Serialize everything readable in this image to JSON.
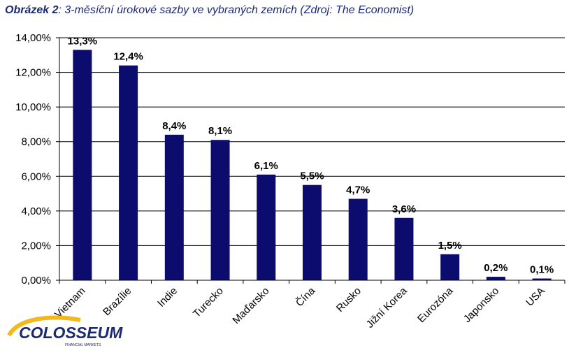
{
  "caption": {
    "label": "Obrázek 2",
    "text": ": 3-měsíční úrokové sazby ve vybraných zemích (Zdroj: The Economist)"
  },
  "logo": {
    "name": "COLOSSEUM",
    "tagline": "FINANCIAL MARKETS",
    "color": "#1c2a73",
    "accent": "#f2b81c"
  },
  "chart_data": {
    "type": "bar",
    "title": "",
    "xlabel": "",
    "ylabel": "",
    "categories": [
      "Vietnam",
      "Brazílie",
      "Indie",
      "Turecko",
      "Maďarsko",
      "Čína",
      "Rusko",
      "Jižní Korea",
      "Eurozóna",
      "Japonsko",
      "USA"
    ],
    "values": [
      13.3,
      12.4,
      8.4,
      8.1,
      6.1,
      5.5,
      4.7,
      3.6,
      1.5,
      0.2,
      0.1
    ],
    "data_labels": [
      "13,3%",
      "12,4%",
      "8,4%",
      "8,1%",
      "6,1%",
      "5,5%",
      "4,7%",
      "3,6%",
      "1,5%",
      "0,2%",
      "0,1%"
    ],
    "yticks": [
      0,
      2,
      4,
      6,
      8,
      10,
      12,
      14
    ],
    "ytick_labels": [
      "0,00%",
      "2,00%",
      "4,00%",
      "6,00%",
      "8,00%",
      "10,00%",
      "12,00%",
      "14,00%"
    ],
    "ylim": [
      0,
      14
    ],
    "grid": true,
    "legend": "none",
    "bar_color": "#0c0c6e"
  }
}
